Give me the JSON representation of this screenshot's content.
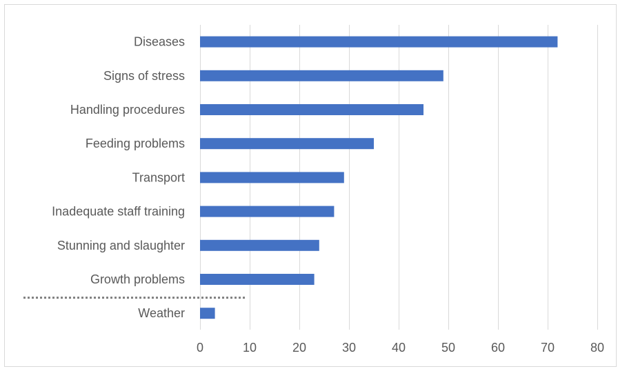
{
  "chart_data": {
    "type": "bar",
    "orientation": "horizontal",
    "title": "",
    "xlabel": "",
    "ylabel": "",
    "categories": [
      "Diseases",
      "Signs of stress",
      "Handling procedures",
      "Feeding problems",
      "Transport",
      "Inadequate staff training",
      "Stunning and slaughter",
      "Growth problems",
      "Weather"
    ],
    "values": [
      72,
      49,
      45,
      35,
      29,
      27,
      24,
      23,
      3
    ],
    "xlim": [
      0,
      80
    ],
    "xticks": [
      "0",
      "10",
      "20",
      "30",
      "40",
      "50",
      "60",
      "70",
      "80"
    ],
    "grid": "vertical",
    "legend": "none",
    "bar_color": "#4472c4",
    "gridline_color": "#d9d9d9",
    "text_color": "#595959",
    "separator": {
      "style": "dotted",
      "color": "#7f7f7f",
      "between": [
        "Growth problems",
        "Weather"
      ]
    }
  }
}
